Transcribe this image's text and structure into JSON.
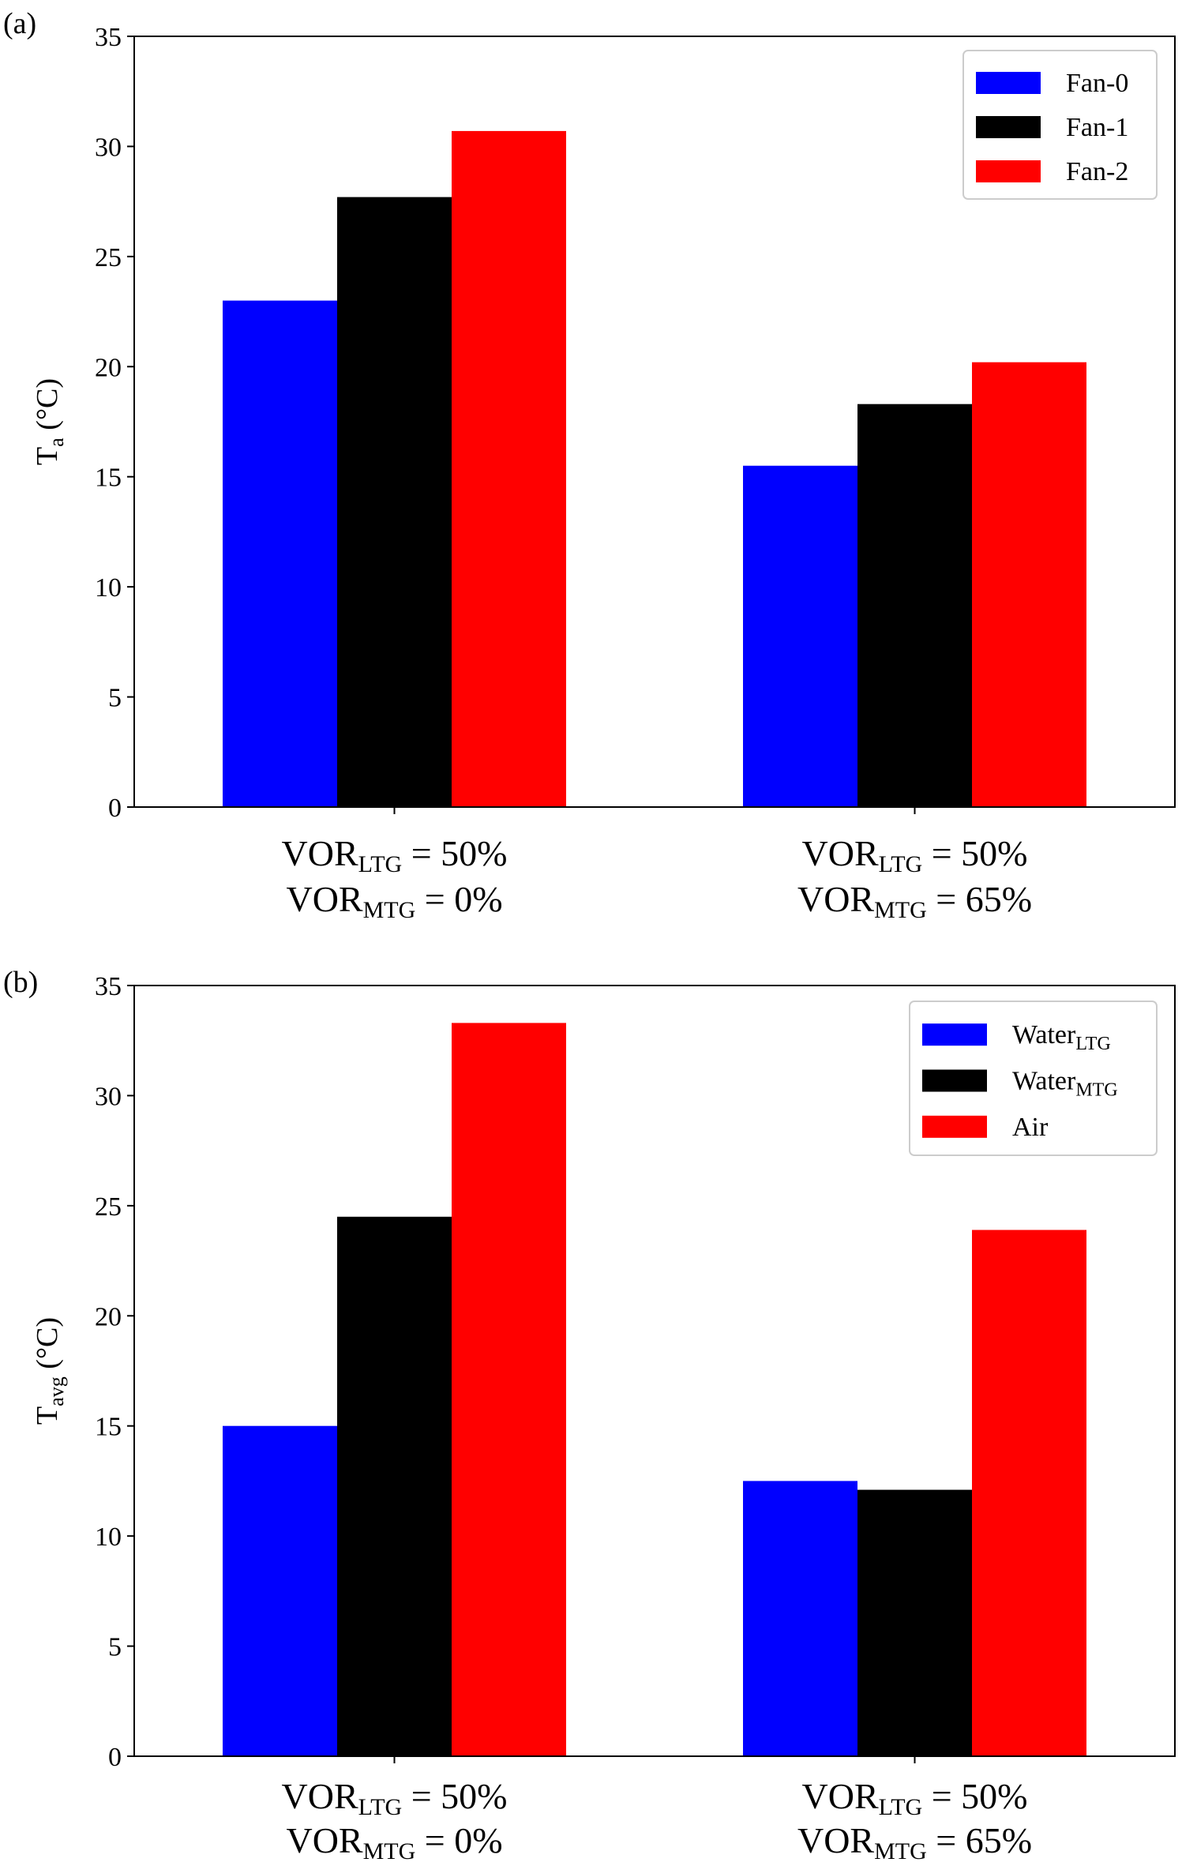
{
  "chart_data": [
    {
      "type": "bar",
      "panel_label": "(a)",
      "categories": [
        {
          "line1": {
            "base": "VOR",
            "sub": "LTG",
            "rest": " = 50%"
          },
          "line2": {
            "base": "VOR",
            "sub": "MTG",
            "rest": " = 0%"
          }
        },
        {
          "line1": {
            "base": "VOR",
            "sub": "LTG",
            "rest": " = 50%"
          },
          "line2": {
            "base": "VOR",
            "sub": "MTG",
            "rest": " = 65%"
          }
        }
      ],
      "series": [
        {
          "name": "Fan-0",
          "name_base": "Fan-0",
          "name_sub": "",
          "color": "#0000ff",
          "values": [
            23.0,
            15.5
          ]
        },
        {
          "name": "Fan-1",
          "name_base": "Fan-1",
          "name_sub": "",
          "color": "#000000",
          "values": [
            27.7,
            18.3
          ]
        },
        {
          "name": "Fan-2",
          "name_base": "Fan-2",
          "name_sub": "",
          "color": "#ff0000",
          "values": [
            30.7,
            20.2
          ]
        }
      ],
      "ylabel": {
        "base": "T",
        "sub": "a",
        "rest": " (°C)"
      },
      "ylim": [
        0,
        35
      ],
      "yticks": [
        "0",
        "5",
        "10",
        "15",
        "20",
        "25",
        "30",
        "35"
      ],
      "legend_position": "top-right",
      "grid": false
    },
    {
      "type": "bar",
      "panel_label": "(b)",
      "categories": [
        {
          "line1": {
            "base": "VOR",
            "sub": "LTG",
            "rest": " = 50%"
          },
          "line2": {
            "base": "VOR",
            "sub": "MTG",
            "rest": " = 0%"
          }
        },
        {
          "line1": {
            "base": "VOR",
            "sub": "LTG",
            "rest": " = 50%"
          },
          "line2": {
            "base": "VOR",
            "sub": "MTG",
            "rest": " = 65%"
          }
        }
      ],
      "series": [
        {
          "name": "Water_LTG",
          "name_base": "Water",
          "name_sub": "LTG",
          "color": "#0000ff",
          "values": [
            15.0,
            12.5
          ]
        },
        {
          "name": "Water_MTG",
          "name_base": "Water",
          "name_sub": "MTG",
          "color": "#000000",
          "values": [
            24.5,
            12.1
          ]
        },
        {
          "name": "Air",
          "name_base": "Air",
          "name_sub": "",
          "color": "#ff0000",
          "values": [
            33.3,
            23.9
          ]
        }
      ],
      "ylabel": {
        "base": "T",
        "sub": "avg",
        "rest": " (°C)"
      },
      "ylim": [
        0,
        35
      ],
      "yticks": [
        "0",
        "5",
        "10",
        "15",
        "20",
        "25",
        "30",
        "35"
      ],
      "legend_position": "top-right",
      "grid": false
    }
  ]
}
